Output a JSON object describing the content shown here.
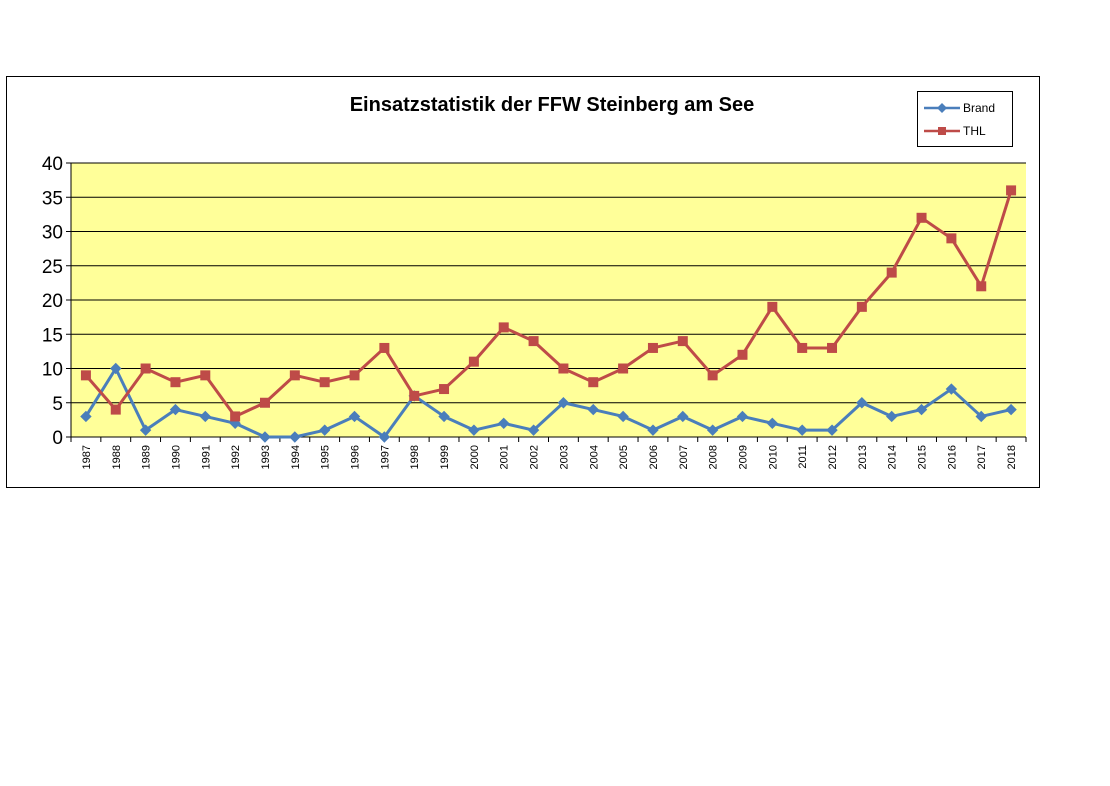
{
  "chart_data": {
    "type": "line",
    "title": "Einsatzstatistik der FFW Steinberg am See",
    "xlabel": "",
    "ylabel": "",
    "ylim": [
      0,
      40
    ],
    "yticks": [
      0,
      5,
      10,
      15,
      20,
      25,
      30,
      35,
      40
    ],
    "grid": true,
    "legend_position": "top-right",
    "plot_background": "#FFFF99",
    "categories": [
      "1987",
      "1988",
      "1989",
      "1990",
      "1991",
      "1992",
      "1993",
      "1994",
      "1995",
      "1996",
      "1997",
      "1998",
      "1999",
      "2000",
      "2001",
      "2002",
      "2003",
      "2004",
      "2005",
      "2006",
      "2007",
      "2008",
      "2009",
      "2010",
      "2011",
      "2012",
      "2013",
      "2014",
      "2015",
      "2016",
      "2017",
      "2018"
    ],
    "series": [
      {
        "name": "Brand",
        "color": "#4A7EBB",
        "marker": "diamond",
        "values": [
          3,
          10,
          1,
          4,
          3,
          2,
          0,
          0,
          1,
          3,
          0,
          6,
          3,
          1,
          2,
          1,
          5,
          4,
          3,
          1,
          3,
          1,
          3,
          2,
          1,
          1,
          5,
          3,
          4,
          7,
          3,
          4
        ]
      },
      {
        "name": "THL",
        "color": "#BE4B48",
        "marker": "square",
        "values": [
          9,
          4,
          10,
          8,
          9,
          3,
          5,
          9,
          8,
          9,
          13,
          6,
          7,
          11,
          16,
          14,
          10,
          8,
          10,
          13,
          14,
          9,
          12,
          19,
          13,
          13,
          19,
          24,
          32,
          29,
          22,
          36
        ]
      }
    ]
  }
}
